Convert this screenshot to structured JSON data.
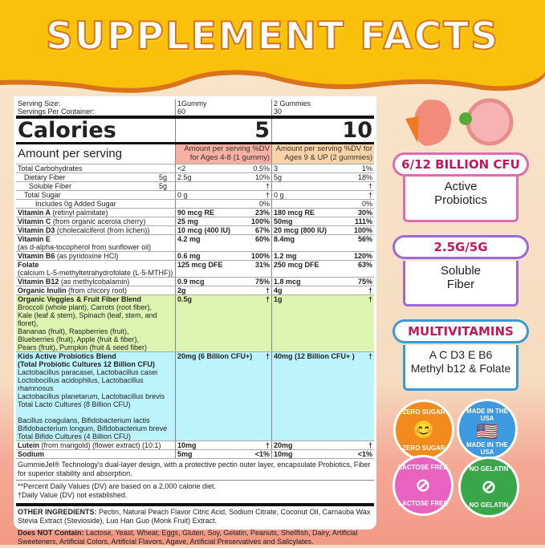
{
  "title": "SUPPLEMENT FACTS",
  "serving": {
    "size_label": "Serving Size:",
    "per_container_label": "Servings Per Container:",
    "col1_size": "1Gummy",
    "col1_per": "60",
    "col2_size": "2 Gummies",
    "col2_per": "30"
  },
  "calories": {
    "label": "Calories",
    "col1": "5",
    "col2": "10"
  },
  "amount_header": {
    "label": "Amount per serving",
    "col1": "Amount per serving  %DV for Ages 4-8  (1 gummy)",
    "col2": "Amount per serving  %DV for Ages 9 & UP (2 gummies)",
    "col1_color": "#f7b0a4",
    "col2_color": "#fbd3a8"
  },
  "rows": [
    {
      "name": "Total Carbohydrates",
      "a1": "<2",
      "d1": "0.5%",
      "a2": "3",
      "d2": "1%"
    },
    {
      "name": "Dietary Fiber",
      "indent": 1,
      "amt": "5g",
      "a1": "2.5g",
      "d1": "10%",
      "a2": "5g",
      "d2": "18%"
    },
    {
      "name": "Soluble Fiber",
      "indent": 2,
      "amt": "5g",
      "a1": "",
      "d1": "†",
      "a2": "",
      "d2": "†"
    },
    {
      "name": "Total Sugar",
      "indent": 1,
      "a1": "0 g",
      "d1": "†",
      "a2": "0 g",
      "d2": "†"
    },
    {
      "name": "Includes 0g Added Sugar",
      "indent": 3,
      "a1": "",
      "d1": "0%",
      "a2": "",
      "d2": "0%"
    },
    {
      "name": "Vitamin A",
      "desc": " (retinyl palmitate)",
      "bold": 1,
      "a1": "90 mcg RE",
      "d1": "23%",
      "a2": "180 mcg RE",
      "d2": "30%"
    },
    {
      "name": "Vitamin C",
      "desc": " (from organic acerola cherry)",
      "bold": 1,
      "a1": "25 mg",
      "d1": "100%",
      "a2": "50mg",
      "d2": "111%"
    },
    {
      "name": "Vitamin D3",
      "desc": " (cholecalciferol (from lichen))",
      "bold": 1,
      "a1": "10 mcg (400 IU)",
      "d1": "67%",
      "a2": "20 mcg (800 IU)",
      "d2": "100%"
    },
    {
      "name": "Vitamin E",
      "bold": 1,
      "sub": "(as d-alpha-tocopherol from sunflower oil)",
      "a1": "4.2 mg",
      "d1": "60%",
      "a2": "8.4mg",
      "d2": "56%"
    },
    {
      "name": "Vitamin B6",
      "desc": " (as pyridoxine HCl)",
      "bold": 1,
      "a1": "0.6 mg",
      "d1": "100%",
      "a2": "1.2 mg",
      "d2": "120%"
    },
    {
      "name": "Folate",
      "bold": 1,
      "sub": "(calcium L-5-methyltetrahydrofolate (L-5-MTHF))",
      "a1": "125 mcg DFE",
      "d1": "31%",
      "a2": "250 mcg DFE",
      "d2": "63%"
    },
    {
      "name": "Vitamin B12",
      "desc": " (as methylcobalamin)",
      "bold": 1,
      "a1": "0.9 mcg",
      "d1": "75%",
      "a2": "1.8 mcg",
      "d2": "75%"
    },
    {
      "name": "Organic Inulin",
      "desc": " (from chicory root)",
      "bold": 1,
      "a1": "2g",
      "d1": "†",
      "a2": "4g",
      "d2": "†"
    },
    {
      "name": "Organic Veggies & Fruit Fiber Blend",
      "bold": 1,
      "bg": "#dcf5b0",
      "sub": "Broccoli (whole plant), Carrots (root fiber),\nKale (leaf & stem), Spinach (leaf, stem, and floret),\nBananas (fruit), Raspberries (fruit),\nBlueberries (fruit), Apple (fruit & fiber),\nPears (fruit), Pumpkin (fruit & seed fiber)",
      "a1": "0.5g",
      "d1": "†",
      "a2": "1g",
      "d2": "†"
    },
    {
      "name": "Kids Active Probiotics Blend\n(Total Probiotic Cultures 12 Billion CFU)",
      "bold": 1,
      "bg": "#bdf3fb",
      "sub": "    Lactobacillus paracasei, Lactobacillus casei\n    Loctobocillus acidophilus, Lactobacillus rhamnosus\n    Lactobacillus planetarum, Lactobacillus brevis\n              Total Lacto Cultures (8 Billion CFU)\n\n    Bacillus coagulans, Bifidobacterium lactis\n    Bifidobacterium longum, Bifidobacterium breve\n              Total Bifido Cultures (4 Billion CFU)",
      "a1": "20mg (6 Billion CFU+)",
      "d1": "†",
      "a2": "40mg (12 Billion CFU+ )",
      "d2": "†"
    },
    {
      "name": "Lutein",
      "desc": " (from marigold) (flower extract) (10:1)",
      "bold": 1,
      "a1": "10mg",
      "d1": "†",
      "a2": "20mg",
      "d2": "†"
    },
    {
      "name": "Sodium",
      "bold": 1,
      "a1": "5mg",
      "d1": "<1%",
      "a2": "10mg",
      "d2": "<1%"
    }
  ],
  "notes": {
    "tech": "GummieJel® Technology's dual-layer design, with a protective pectin outer layer, encapsulate Probiotics, Fiber for superior stability and absorption.",
    "dv1": "**Percent Daily Values (DV) are based on a 2,000 calorie diet.",
    "dv2": "†Daily Value (DV) not established.",
    "other_label": "OTHER INGREDIENTS:",
    "other": " Pectin, Natural Peach Flavor Citric Acid, Sodium Citrate, Coconut Oil, Carnauba Wax Stevia Extract (Stevioside), Luo Han Guo (Monk Fruit) Extract.",
    "not_label": "Does NOT Contain:",
    "not": " Lactose, Yeast, Wheat, Eggs, Gluten, Soy, Gelatin, Peanuts, Shellfish, Dairy, Artificial Sweeteners, Artificial Colors, Artificial Flavors, Agave, Artificial Preservatives and Salicylates."
  },
  "features": [
    {
      "headline": "6/12 BILLION CFU",
      "line1": "Active",
      "line2": "Probiotics",
      "color": "#e06bb0"
    },
    {
      "headline": "2.5G/5G",
      "line1": "Soluble",
      "line2": "Fiber",
      "color": "#9b6ad6"
    },
    {
      "headline": "MULTIVITAMINS",
      "line1": "A C D3 E B6",
      "line2": "Methyl b12 & Folate",
      "color": "#3b9ad6"
    }
  ],
  "badges": [
    {
      "text": "ZERO SUGAR",
      "icon": "tooth-icon",
      "color": "#f28a1e"
    },
    {
      "text": "MADE IN THE USA",
      "icon": "us-flag-icon",
      "color": "#3d9ae0"
    },
    {
      "text": "LACTOSE FREE",
      "icon": "milk-bottle-icon",
      "color": "#ea62c0"
    },
    {
      "text": "NO GELATIN",
      "icon": "gelatin-icon",
      "color": "#3aa64a"
    }
  ]
}
